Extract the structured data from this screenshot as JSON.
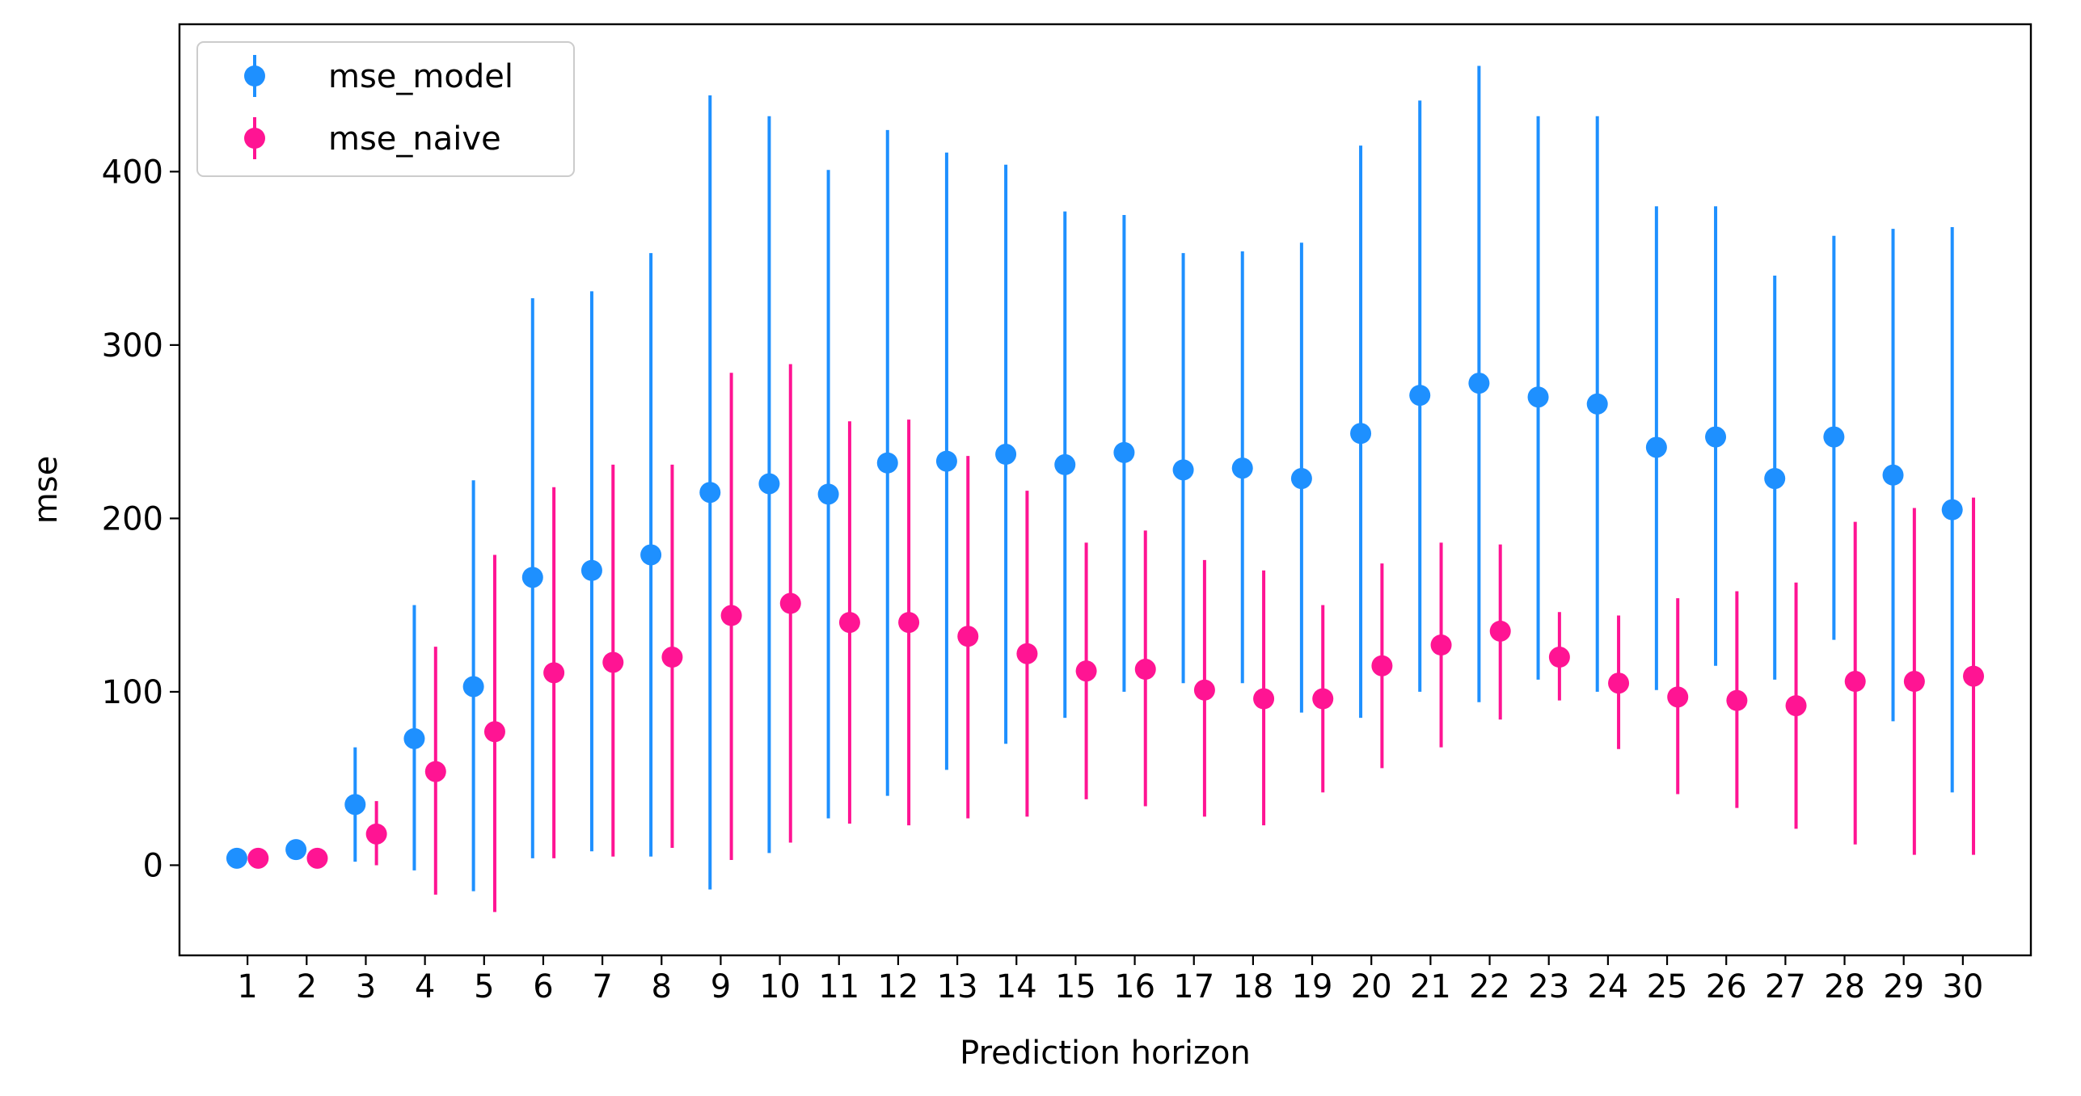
{
  "chart_data": {
    "type": "scatter",
    "title": "",
    "xlabel": "Prediction horizon",
    "ylabel": "mse",
    "x": [
      1,
      2,
      3,
      4,
      5,
      6,
      7,
      8,
      9,
      10,
      11,
      12,
      13,
      14,
      15,
      16,
      17,
      18,
      19,
      20,
      21,
      22,
      23,
      24,
      25,
      26,
      27,
      28,
      29,
      30
    ],
    "x_ticks": [
      "1",
      "2",
      "3",
      "4",
      "5",
      "6",
      "7",
      "8",
      "9",
      "10",
      "11",
      "12",
      "13",
      "14",
      "15",
      "16",
      "17",
      "18",
      "19",
      "20",
      "21",
      "22",
      "23",
      "24",
      "25",
      "26",
      "27",
      "28",
      "29",
      "30"
    ],
    "y_ticks": [
      "0",
      "100",
      "200",
      "300",
      "400"
    ],
    "xlim": [
      -0.15,
      31.15
    ],
    "ylim": [
      -52,
      485
    ],
    "grid": false,
    "legend_position": "top-left",
    "series": [
      {
        "name": "mse_model",
        "color": "#1e90ff",
        "marker": "circle",
        "values": [
          4,
          9,
          35,
          73,
          103,
          166,
          170,
          179,
          215,
          220,
          214,
          232,
          233,
          237,
          231,
          238,
          228,
          229,
          223,
          249,
          271,
          278,
          270,
          266,
          241,
          247,
          223,
          247,
          225,
          205
        ],
        "err_low": [
          4,
          9,
          2,
          -3,
          -15,
          4,
          8,
          5,
          -14,
          7,
          27,
          40,
          55,
          70,
          85,
          100,
          105,
          105,
          88,
          85,
          100,
          94,
          107,
          100,
          101,
          115,
          107,
          130,
          83,
          42
        ],
        "err_high": [
          4,
          9,
          68,
          150,
          222,
          327,
          331,
          353,
          444,
          432,
          401,
          424,
          411,
          404,
          377,
          375,
          353,
          354,
          359,
          415,
          441,
          461,
          432,
          432,
          380,
          380,
          340,
          363,
          367,
          368
        ]
      },
      {
        "name": "mse_naive",
        "color": "#ff1493",
        "marker": "circle",
        "values": [
          4,
          4,
          18,
          54,
          77,
          111,
          117,
          120,
          144,
          151,
          140,
          140,
          132,
          122,
          112,
          113,
          101,
          96,
          96,
          115,
          127,
          135,
          120,
          105,
          97,
          95,
          92,
          106,
          106,
          109
        ],
        "err_low": [
          4,
          4,
          0,
          -17,
          -27,
          4,
          5,
          10,
          3,
          13,
          24,
          23,
          27,
          28,
          38,
          34,
          28,
          23,
          42,
          56,
          68,
          84,
          95,
          67,
          41,
          33,
          21,
          12,
          6,
          6
        ],
        "err_high": [
          4,
          4,
          37,
          126,
          179,
          218,
          231,
          231,
          284,
          289,
          256,
          257,
          236,
          216,
          186,
          193,
          176,
          170,
          150,
          174,
          186,
          185,
          146,
          144,
          154,
          158,
          163,
          198,
          206,
          212
        ]
      }
    ]
  }
}
